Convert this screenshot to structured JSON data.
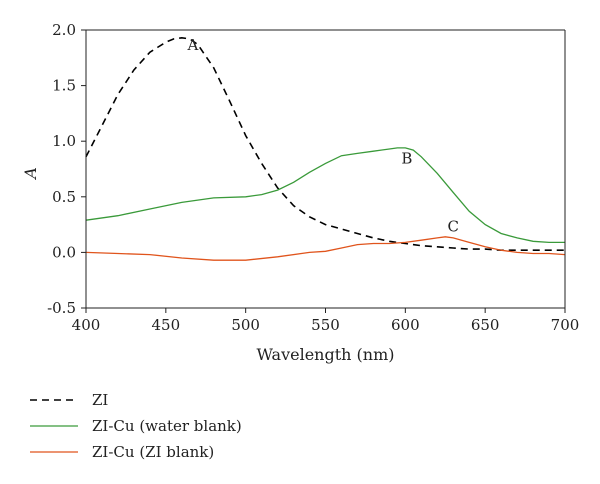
{
  "chart_data": {
    "type": "line",
    "xlabel": "Wavelength (nm)",
    "ylabel": "A",
    "xlim": [
      400,
      700
    ],
    "ylim": [
      -0.5,
      2.0
    ],
    "xticks": [
      400,
      450,
      500,
      550,
      600,
      650,
      700
    ],
    "yticks": [
      -0.5,
      0.0,
      0.5,
      1.0,
      1.5,
      2.0
    ],
    "xtick_labels": [
      "400",
      "450",
      "500",
      "550",
      "600",
      "650",
      "700"
    ],
    "ytick_labels": [
      "-0.5",
      "0.0",
      "0.5",
      "1.0",
      "1.5",
      "2.0"
    ],
    "grid": false,
    "legend_position": "below",
    "series": [
      {
        "name": "ZI",
        "color": "#000000",
        "dash": "dashed",
        "x": [
          400,
          410,
          420,
          430,
          440,
          450,
          455,
          460,
          465,
          470,
          480,
          490,
          500,
          510,
          520,
          530,
          540,
          550,
          560,
          570,
          580,
          590,
          600,
          610,
          620,
          630,
          640,
          650,
          660,
          670,
          680,
          690,
          700
        ],
        "y": [
          0.86,
          1.14,
          1.42,
          1.64,
          1.8,
          1.89,
          1.92,
          1.93,
          1.92,
          1.87,
          1.66,
          1.36,
          1.05,
          0.8,
          0.58,
          0.42,
          0.32,
          0.25,
          0.21,
          0.17,
          0.13,
          0.1,
          0.08,
          0.06,
          0.05,
          0.04,
          0.03,
          0.03,
          0.02,
          0.02,
          0.02,
          0.02,
          0.02
        ]
      },
      {
        "name": "ZI-Cu (water blank)",
        "color": "#3a9a3a",
        "dash": "solid",
        "x": [
          400,
          420,
          440,
          460,
          480,
          500,
          510,
          520,
          530,
          540,
          550,
          560,
          570,
          580,
          590,
          595,
          600,
          605,
          610,
          620,
          630,
          640,
          650,
          660,
          670,
          680,
          690,
          700
        ],
        "y": [
          0.29,
          0.33,
          0.39,
          0.45,
          0.49,
          0.5,
          0.52,
          0.56,
          0.63,
          0.72,
          0.8,
          0.87,
          0.89,
          0.91,
          0.93,
          0.94,
          0.94,
          0.92,
          0.86,
          0.71,
          0.54,
          0.37,
          0.25,
          0.17,
          0.13,
          0.1,
          0.09,
          0.09
        ]
      },
      {
        "name": "ZI-Cu (ZI blank)",
        "color": "#e0541c",
        "dash": "solid",
        "x": [
          400,
          420,
          440,
          460,
          480,
          490,
          500,
          520,
          540,
          550,
          560,
          570,
          580,
          590,
          600,
          610,
          620,
          625,
          630,
          640,
          650,
          660,
          670,
          680,
          690,
          700
        ],
        "y": [
          0.0,
          -0.01,
          -0.02,
          -0.05,
          -0.07,
          -0.07,
          -0.07,
          -0.04,
          0.0,
          0.01,
          0.04,
          0.07,
          0.08,
          0.08,
          0.09,
          0.11,
          0.13,
          0.14,
          0.13,
          0.09,
          0.05,
          0.02,
          0.0,
          -0.01,
          -0.01,
          -0.02
        ]
      }
    ],
    "annotations": [
      {
        "text": "A",
        "x": 467,
        "y": 1.82
      },
      {
        "text": "B",
        "x": 601,
        "y": 0.8
      },
      {
        "text": "C",
        "x": 630,
        "y": 0.19
      }
    ]
  }
}
